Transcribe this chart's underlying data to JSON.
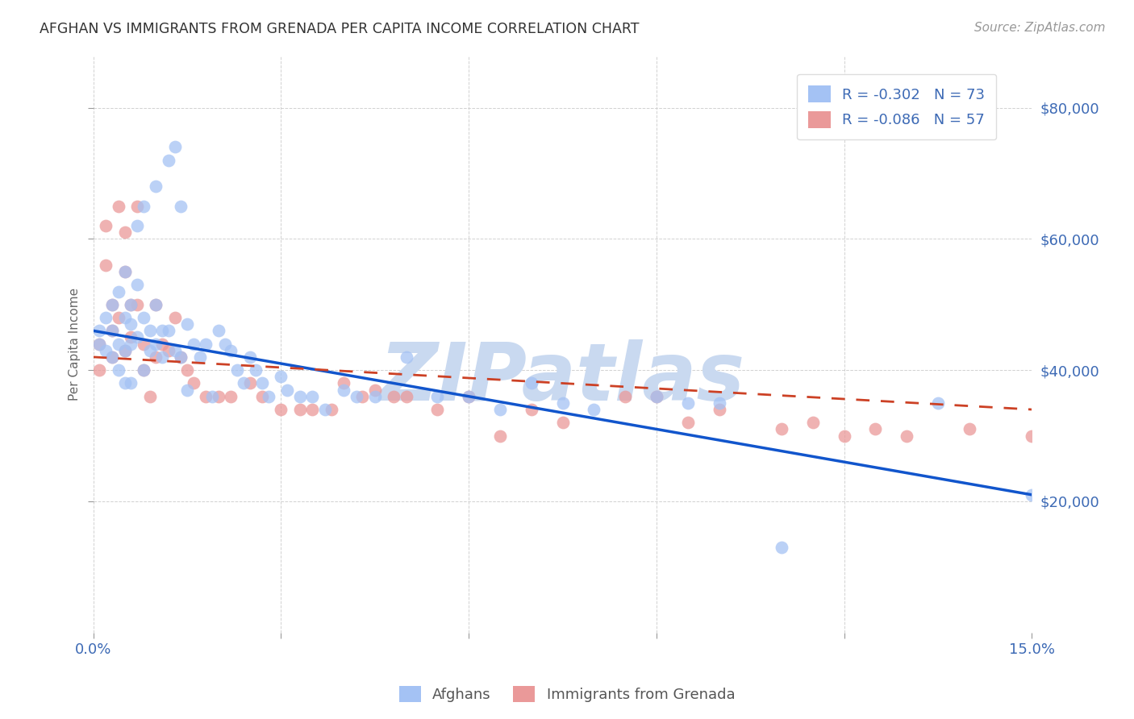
{
  "title": "AFGHAN VS IMMIGRANTS FROM GRENADA PER CAPITA INCOME CORRELATION CHART",
  "source": "Source: ZipAtlas.com",
  "ylabel": "Per Capita Income",
  "yticks": [
    20000,
    40000,
    60000,
    80000
  ],
  "ytick_labels": [
    "$20,000",
    "$40,000",
    "$60,000",
    "$80,000"
  ],
  "ymin": 0,
  "ymax": 88000,
  "xmin": 0.0,
  "xmax": 0.15,
  "legend_blue_R": "R = -0.302",
  "legend_blue_N": "N = 73",
  "legend_pink_R": "R = -0.086",
  "legend_pink_N": "N = 57",
  "blue_color": "#a4c2f4",
  "pink_color": "#ea9999",
  "trendline_blue_color": "#1155cc",
  "trendline_pink_color": "#cc4125",
  "watermark": "ZIPatlas",
  "watermark_color": "#c9d9f0",
  "background_color": "#ffffff",
  "afghans_x": [
    0.001,
    0.001,
    0.002,
    0.002,
    0.003,
    0.003,
    0.003,
    0.004,
    0.004,
    0.004,
    0.005,
    0.005,
    0.005,
    0.005,
    0.006,
    0.006,
    0.006,
    0.006,
    0.007,
    0.007,
    0.007,
    0.008,
    0.008,
    0.008,
    0.009,
    0.009,
    0.01,
    0.01,
    0.01,
    0.011,
    0.011,
    0.012,
    0.012,
    0.013,
    0.013,
    0.014,
    0.014,
    0.015,
    0.015,
    0.016,
    0.017,
    0.018,
    0.019,
    0.02,
    0.021,
    0.022,
    0.023,
    0.024,
    0.025,
    0.026,
    0.027,
    0.028,
    0.03,
    0.031,
    0.033,
    0.035,
    0.037,
    0.04,
    0.042,
    0.045,
    0.05,
    0.055,
    0.06,
    0.065,
    0.07,
    0.075,
    0.08,
    0.09,
    0.095,
    0.1,
    0.11,
    0.135,
    0.15
  ],
  "afghans_y": [
    46000,
    44000,
    48000,
    43000,
    50000,
    46000,
    42000,
    52000,
    44000,
    40000,
    55000,
    48000,
    43000,
    38000,
    50000,
    47000,
    44000,
    38000,
    62000,
    53000,
    45000,
    65000,
    48000,
    40000,
    46000,
    43000,
    68000,
    50000,
    44000,
    46000,
    42000,
    72000,
    46000,
    74000,
    43000,
    65000,
    42000,
    47000,
    37000,
    44000,
    42000,
    44000,
    36000,
    46000,
    44000,
    43000,
    40000,
    38000,
    42000,
    40000,
    38000,
    36000,
    39000,
    37000,
    36000,
    36000,
    34000,
    37000,
    36000,
    36000,
    42000,
    36000,
    36000,
    34000,
    38000,
    35000,
    34000,
    36000,
    35000,
    35000,
    13000,
    35000,
    21000
  ],
  "grenada_x": [
    0.001,
    0.001,
    0.002,
    0.002,
    0.003,
    0.003,
    0.003,
    0.004,
    0.004,
    0.005,
    0.005,
    0.005,
    0.006,
    0.006,
    0.007,
    0.007,
    0.008,
    0.008,
    0.009,
    0.01,
    0.01,
    0.011,
    0.012,
    0.013,
    0.014,
    0.015,
    0.016,
    0.018,
    0.02,
    0.022,
    0.025,
    0.027,
    0.03,
    0.033,
    0.035,
    0.038,
    0.04,
    0.043,
    0.045,
    0.048,
    0.05,
    0.055,
    0.06,
    0.065,
    0.07,
    0.075,
    0.085,
    0.09,
    0.095,
    0.1,
    0.11,
    0.115,
    0.12,
    0.125,
    0.13,
    0.14,
    0.15
  ],
  "grenada_y": [
    44000,
    40000,
    62000,
    56000,
    50000,
    46000,
    42000,
    65000,
    48000,
    61000,
    55000,
    43000,
    50000,
    45000,
    65000,
    50000,
    44000,
    40000,
    36000,
    50000,
    42000,
    44000,
    43000,
    48000,
    42000,
    40000,
    38000,
    36000,
    36000,
    36000,
    38000,
    36000,
    34000,
    34000,
    34000,
    34000,
    38000,
    36000,
    37000,
    36000,
    36000,
    34000,
    36000,
    30000,
    34000,
    32000,
    36000,
    36000,
    32000,
    34000,
    31000,
    32000,
    30000,
    31000,
    30000,
    31000,
    30000
  ],
  "trendline_blue_x0": 0.0,
  "trendline_blue_y0": 46000,
  "trendline_blue_x1": 0.15,
  "trendline_blue_y1": 21000,
  "trendline_pink_x0": 0.0,
  "trendline_pink_y0": 42000,
  "trendline_pink_x1": 0.15,
  "trendline_pink_y1": 34000
}
